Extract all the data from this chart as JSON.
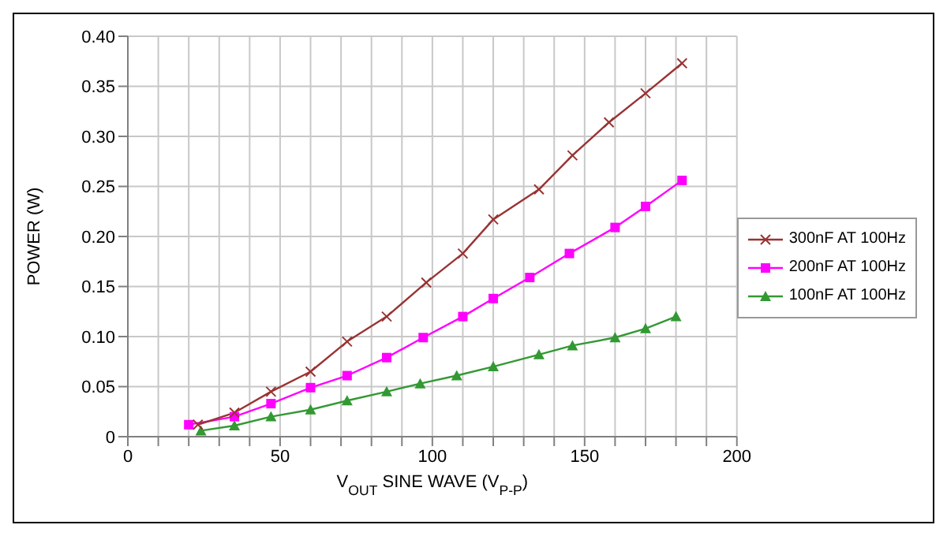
{
  "chart_data": {
    "type": "line",
    "xlabel": "V$_{OUT}$ SINE WAVE (V$_{P-P}$)",
    "ylabel": "POWER (W)",
    "xlim": [
      0,
      200
    ],
    "xticks": [
      0,
      {
        "value": 10,
        "label": null
      },
      50,
      {
        "value": 20,
        "label": null
      },
      {
        "value": 30,
        "label": null
      },
      {
        "value": 40,
        "label": null
      },
      {
        "value": 60,
        "label": null
      },
      {
        "value": 70,
        "label": null
      },
      {
        "value": 80,
        "label": null
      },
      {
        "value": 90,
        "label": null
      },
      100,
      {
        "value": 110,
        "label": null
      },
      {
        "value": 120,
        "label": null
      },
      {
        "value": 130,
        "label": null
      },
      {
        "value": 140,
        "label": null
      },
      150,
      {
        "value": 160,
        "label": null
      },
      {
        "value": 170,
        "label": null
      },
      {
        "value": 180,
        "label": null
      },
      {
        "value": 190,
        "label": null
      },
      200
    ],
    "ylim": [
      0,
      0.4
    ],
    "yticks": [
      0,
      {
        "value": 0.05,
        "label": "0.05"
      },
      {
        "value": 0.1,
        "label": "0.10"
      },
      {
        "value": 0.15,
        "label": "0.15"
      },
      {
        "value": 0.2,
        "label": "0.20"
      },
      {
        "value": 0.25,
        "label": "0.25"
      },
      {
        "value": 0.3,
        "label": "0.30"
      },
      {
        "value": 0.35,
        "label": "0.35"
      },
      {
        "value": 0.4,
        "label": "0.40"
      }
    ],
    "grid": true,
    "legend": "right",
    "line_style": "solid",
    "series": [
      {
        "name": "300nF AT 100Hz",
        "color": "#993333",
        "marker": "cross",
        "x": [
          23,
          35,
          47,
          60,
          72,
          85,
          98,
          110,
          120,
          135,
          146,
          158,
          170,
          182
        ],
        "values": [
          0.012,
          0.024,
          0.045,
          0.065,
          0.095,
          0.12,
          0.154,
          0.183,
          0.217,
          0.247,
          0.281,
          0.314,
          0.343,
          0.373
        ]
      },
      {
        "name": "200nF AT 100Hz",
        "color": "#ff00ff",
        "marker": "square",
        "x": [
          20,
          35,
          47,
          60,
          72,
          85,
          97,
          110,
          120,
          132,
          145,
          160,
          170,
          182
        ],
        "values": [
          0.012,
          0.02,
          0.033,
          0.049,
          0.061,
          0.079,
          0.099,
          0.12,
          0.138,
          0.159,
          0.183,
          0.209,
          0.23,
          0.256
        ]
      },
      {
        "name": "100nF AT 100Hz",
        "color": "#339933",
        "marker": "triangle",
        "x": [
          24,
          35,
          47,
          60,
          72,
          85,
          96,
          108,
          120,
          135,
          146,
          160,
          170,
          180
        ],
        "values": [
          0.006,
          0.011,
          0.02,
          0.027,
          0.036,
          0.045,
          0.053,
          0.061,
          0.07,
          0.082,
          0.091,
          0.099,
          0.108,
          0.12
        ]
      }
    ]
  }
}
